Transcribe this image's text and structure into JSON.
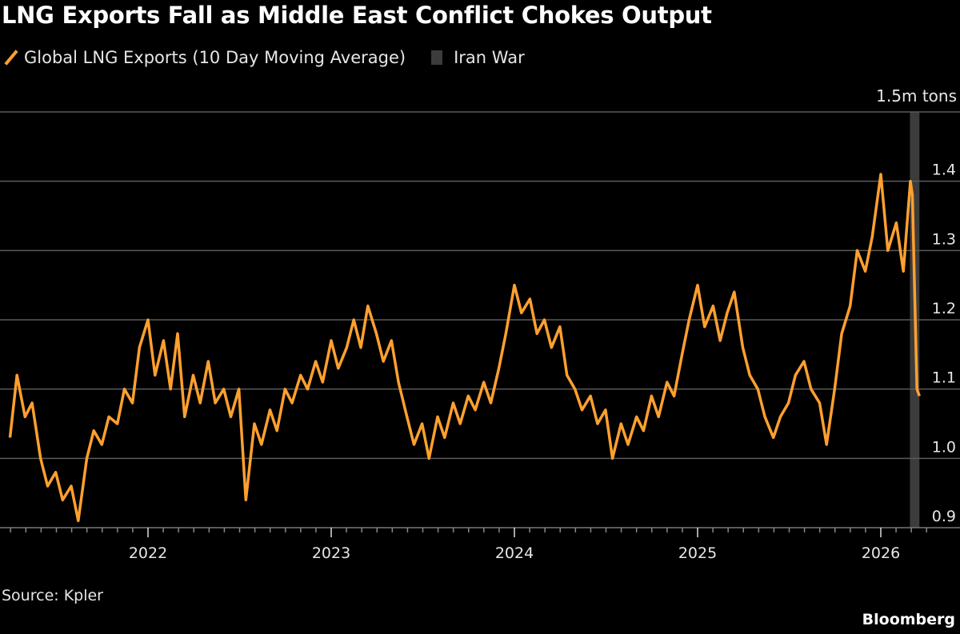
{
  "title": "LNG Exports Fall as Middle East Conflict Chokes Output",
  "source": "Source: Kpler",
  "brand": "Bloomberg",
  "chart_data": {
    "type": "line",
    "title": "LNG Exports Fall as Middle East Conflict Chokes Output",
    "unit_label": "1.5m tons",
    "ylim": [
      0.9,
      1.5
    ],
    "y_ticks": [
      "0.9",
      "1.0",
      "1.1",
      "1.2",
      "1.3",
      "1.4"
    ],
    "x_ticks": [
      "2022",
      "2023",
      "2024",
      "2025",
      "2026"
    ],
    "grid": true,
    "legend_position": "top-left",
    "legend": [
      {
        "label": "Global LNG Exports (10 Day Moving Average)",
        "color": "#ffa02f",
        "kind": "line"
      },
      {
        "label": "Iran War",
        "color": "#3c3c3c",
        "kind": "band"
      }
    ],
    "shaded_band": {
      "name": "Iran War",
      "start": "2026-02-28",
      "end": "2026-03-19"
    },
    "series": [
      {
        "name": "Global LNG Exports (10 Day Moving Average)",
        "color": "#ffa02f",
        "x": [
          "2021-04-01",
          "2021-04-15",
          "2021-05-01",
          "2021-05-15",
          "2021-06-01",
          "2021-06-15",
          "2021-07-01",
          "2021-07-15",
          "2021-08-01",
          "2021-08-15",
          "2021-09-01",
          "2021-09-15",
          "2021-10-01",
          "2021-10-15",
          "2021-11-01",
          "2021-11-15",
          "2021-12-01",
          "2021-12-15",
          "2022-01-01",
          "2022-01-15",
          "2022-02-01",
          "2022-02-15",
          "2022-03-01",
          "2022-03-15",
          "2022-04-01",
          "2022-04-15",
          "2022-05-01",
          "2022-05-15",
          "2022-06-01",
          "2022-06-15",
          "2022-07-01",
          "2022-07-15",
          "2022-08-01",
          "2022-08-15",
          "2022-09-01",
          "2022-09-15",
          "2022-10-01",
          "2022-10-15",
          "2022-11-01",
          "2022-11-15",
          "2022-12-01",
          "2022-12-15",
          "2023-01-01",
          "2023-01-15",
          "2023-02-01",
          "2023-02-15",
          "2023-03-01",
          "2023-03-15",
          "2023-04-01",
          "2023-04-15",
          "2023-05-01",
          "2023-05-15",
          "2023-06-01",
          "2023-06-15",
          "2023-07-01",
          "2023-07-15",
          "2023-08-01",
          "2023-08-15",
          "2023-09-01",
          "2023-09-15",
          "2023-10-01",
          "2023-10-15",
          "2023-11-01",
          "2023-11-15",
          "2023-12-01",
          "2023-12-15",
          "2024-01-01",
          "2024-01-15",
          "2024-02-01",
          "2024-02-15",
          "2024-03-01",
          "2024-03-15",
          "2024-04-01",
          "2024-04-15",
          "2024-05-01",
          "2024-05-15",
          "2024-06-01",
          "2024-06-15",
          "2024-07-01",
          "2024-07-15",
          "2024-08-01",
          "2024-08-15",
          "2024-09-01",
          "2024-09-15",
          "2024-10-01",
          "2024-10-15",
          "2024-11-01",
          "2024-11-15",
          "2024-12-01",
          "2024-12-15",
          "2025-01-01",
          "2025-01-15",
          "2025-02-01",
          "2025-02-15",
          "2025-03-01",
          "2025-03-15",
          "2025-04-01",
          "2025-04-15",
          "2025-05-01",
          "2025-05-15",
          "2025-06-01",
          "2025-06-15",
          "2025-07-01",
          "2025-07-15",
          "2025-08-01",
          "2025-08-15",
          "2025-09-01",
          "2025-09-15",
          "2025-10-01",
          "2025-10-15",
          "2025-11-01",
          "2025-11-15",
          "2025-12-01",
          "2025-12-15",
          "2026-01-01",
          "2026-01-15",
          "2026-02-01",
          "2026-02-15",
          "2026-03-01",
          "2026-03-05",
          "2026-03-10",
          "2026-03-14",
          "2026-03-19"
        ],
        "values": [
          1.03,
          1.12,
          1.06,
          1.08,
          1.0,
          0.96,
          0.98,
          0.94,
          0.96,
          0.91,
          1.0,
          1.04,
          1.02,
          1.06,
          1.05,
          1.1,
          1.08,
          1.16,
          1.2,
          1.12,
          1.17,
          1.1,
          1.18,
          1.06,
          1.12,
          1.08,
          1.14,
          1.08,
          1.1,
          1.06,
          1.1,
          0.94,
          1.05,
          1.02,
          1.07,
          1.04,
          1.1,
          1.08,
          1.12,
          1.1,
          1.14,
          1.11,
          1.17,
          1.13,
          1.16,
          1.2,
          1.16,
          1.22,
          1.18,
          1.14,
          1.17,
          1.11,
          1.06,
          1.02,
          1.05,
          1.0,
          1.06,
          1.03,
          1.08,
          1.05,
          1.09,
          1.07,
          1.11,
          1.08,
          1.13,
          1.18,
          1.25,
          1.21,
          1.23,
          1.18,
          1.2,
          1.16,
          1.19,
          1.12,
          1.1,
          1.07,
          1.09,
          1.05,
          1.07,
          1.0,
          1.05,
          1.02,
          1.06,
          1.04,
          1.09,
          1.06,
          1.11,
          1.09,
          1.15,
          1.2,
          1.25,
          1.19,
          1.22,
          1.17,
          1.21,
          1.24,
          1.16,
          1.12,
          1.1,
          1.06,
          1.03,
          1.06,
          1.08,
          1.12,
          1.14,
          1.1,
          1.08,
          1.02,
          1.1,
          1.18,
          1.22,
          1.3,
          1.27,
          1.32,
          1.41,
          1.3,
          1.34,
          1.27,
          1.4,
          1.38,
          1.22,
          1.1,
          1.09
        ]
      }
    ]
  }
}
